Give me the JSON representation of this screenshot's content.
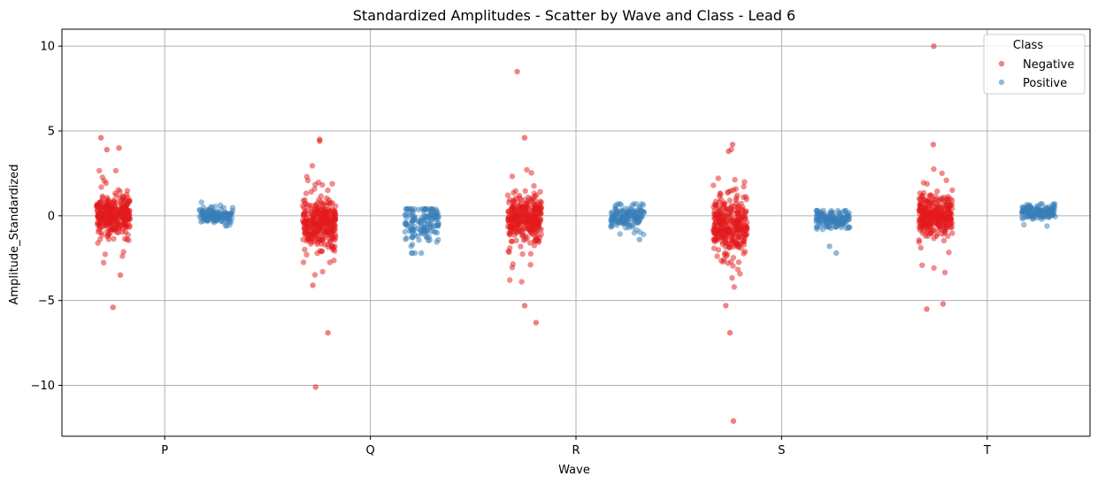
{
  "chart_data": {
    "type": "scatter",
    "title": "Standardized Amplitudes - Scatter by Wave and Class - Lead 6",
    "xlabel": "Wave",
    "ylabel": "Amplitude_Standardized",
    "categories": [
      "P",
      "Q",
      "R",
      "S",
      "T"
    ],
    "ylim": [
      -13,
      11
    ],
    "yticks": [
      10,
      5,
      0,
      -5,
      -10
    ],
    "ytick_labels": [
      "10",
      "5",
      "0",
      "−5",
      "−10"
    ],
    "grid": true,
    "legend": {
      "title": "Class",
      "placement": "top-right",
      "entries": [
        {
          "name": "Negative",
          "color": "#e41a1c"
        },
        {
          "name": "Positive",
          "color": "#377eb8"
        }
      ]
    },
    "series": [
      {
        "name": "Negative",
        "color": "#e41a1c",
        "distributions": [
          {
            "category": "P",
            "center": 0.0,
            "spread": 0.55,
            "range": [
              -3.6,
              4.6
            ],
            "outliers": [
              -5.4,
              4.6,
              4.0,
              3.9,
              -3.5
            ]
          },
          {
            "category": "Q",
            "center": -0.5,
            "spread": 0.75,
            "range": [
              -4.2,
              4.6
            ],
            "outliers": [
              -10.1,
              -6.9,
              4.5,
              4.4,
              -4.1
            ]
          },
          {
            "category": "R",
            "center": -0.2,
            "spread": 0.65,
            "range": [
              -4.0,
              4.7
            ],
            "outliers": [
              8.5,
              -6.3,
              -5.3,
              4.6
            ]
          },
          {
            "category": "S",
            "center": -0.6,
            "spread": 0.75,
            "range": [
              -4.2,
              4.2
            ],
            "outliers": [
              -12.1,
              -6.9,
              -5.3,
              4.2,
              3.8
            ]
          },
          {
            "category": "T",
            "center": 0.0,
            "spread": 0.6,
            "range": [
              -3.6,
              4.2
            ],
            "outliers": [
              10.0,
              -5.2,
              -5.5,
              4.2
            ]
          }
        ]
      },
      {
        "name": "Positive",
        "color": "#377eb8",
        "distributions": [
          {
            "category": "P",
            "center": 0.0,
            "spread": 0.2,
            "range": [
              -0.6,
              0.8
            ],
            "outliers": []
          },
          {
            "category": "Q",
            "center": -0.4,
            "spread": 0.6,
            "range": [
              -2.2,
              0.4
            ],
            "outliers": [
              -2.2
            ]
          },
          {
            "category": "R",
            "center": -0.1,
            "spread": 0.3,
            "range": [
              -1.4,
              0.7
            ],
            "outliers": [
              -1.4
            ]
          },
          {
            "category": "S",
            "center": -0.2,
            "spread": 0.25,
            "range": [
              -1.2,
              0.3
            ],
            "outliers": [
              -2.2,
              -1.8
            ]
          },
          {
            "category": "T",
            "center": 0.2,
            "spread": 0.2,
            "range": [
              -0.7,
              0.7
            ],
            "outliers": []
          }
        ]
      }
    ]
  }
}
